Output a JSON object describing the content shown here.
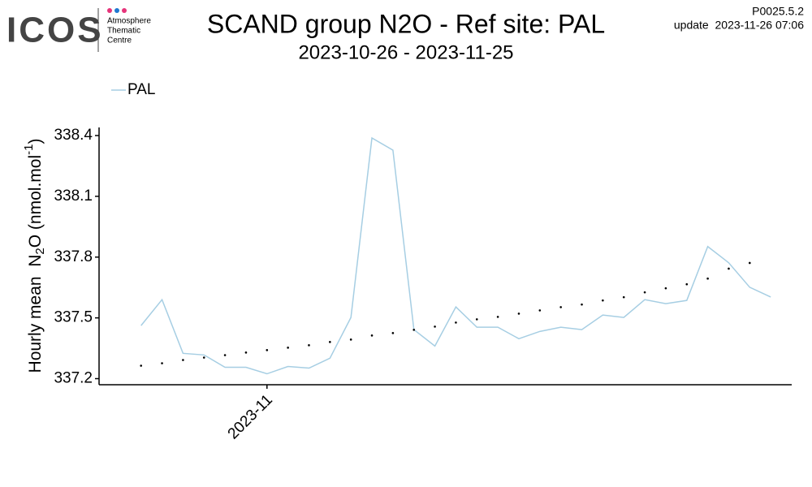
{
  "header": {
    "logo_text": "ICOS",
    "logo_lines": [
      "Atmosphere",
      "Thematic",
      "Centre"
    ],
    "version": "P0025.5.2",
    "update": "update  2023-11-26 07:06"
  },
  "chart_data": {
    "type": "line",
    "title": "SCAND group N2O - Ref site: PAL",
    "subtitle": "2023-10-26 - 2023-11-25",
    "y_label_parts": [
      "Hourly mean  N",
      "2",
      "O (nmol.mol",
      "-1",
      ")"
    ],
    "x": [
      "2023-10-26",
      "2023-10-27",
      "2023-10-28",
      "2023-10-29",
      "2023-10-30",
      "2023-10-31",
      "2023-11-01",
      "2023-11-02",
      "2023-11-03",
      "2023-11-04",
      "2023-11-05",
      "2023-11-06",
      "2023-11-07",
      "2023-11-08",
      "2023-11-09",
      "2023-11-10",
      "2023-11-11",
      "2023-11-12",
      "2023-11-13",
      "2023-11-14",
      "2023-11-15",
      "2023-11-16",
      "2023-11-17",
      "2023-11-18",
      "2023-11-19",
      "2023-11-20",
      "2023-11-21",
      "2023-11-22",
      "2023-11-23",
      "2023-11-24",
      "2023-11-25"
    ],
    "series": [
      {
        "name": "PAL",
        "color": "#a6cee3",
        "style": "line",
        "values": [
          337.462,
          337.59,
          337.325,
          337.317,
          337.256,
          337.256,
          337.224,
          337.26,
          337.252,
          337.301,
          337.502,
          338.388,
          338.328,
          337.442,
          337.361,
          337.554,
          337.454,
          337.454,
          337.397,
          337.433,
          337.454,
          337.442,
          337.514,
          337.502,
          337.59,
          337.57,
          337.586,
          337.852,
          337.772,
          337.651,
          337.603
        ]
      },
      {
        "color": "#000000",
        "style": "dots",
        "values": [
          337.264,
          337.276,
          337.292,
          337.304,
          337.316,
          337.329,
          337.341,
          337.353,
          337.365,
          337.381,
          337.393,
          337.413,
          337.425,
          337.441,
          337.457,
          337.477,
          337.493,
          337.505,
          337.521,
          337.537,
          337.553,
          337.566,
          337.586,
          337.602,
          337.626,
          337.646,
          337.666,
          337.694,
          337.743,
          337.771,
          null
        ]
      }
    ],
    "xlim": [
      "2023-10-24",
      "2023-11-26"
    ],
    "xticks": [
      {
        "value": "2023-11-01",
        "label": "2023-11"
      }
    ],
    "ylim": [
      337.17,
      338.44
    ],
    "yticks": [
      337.2,
      337.5,
      337.8,
      338.1,
      338.4
    ],
    "legend": "top-left"
  }
}
